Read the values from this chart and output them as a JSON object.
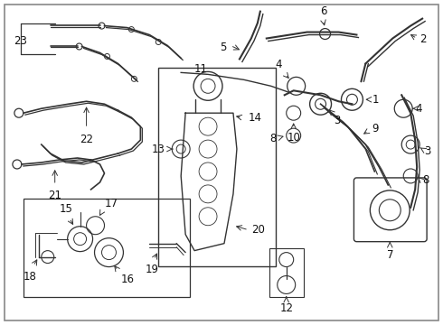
{
  "background_color": "#ffffff",
  "line_color": "#333333",
  "text_color": "#111111",
  "label_fontsize": 8.5,
  "fig_width": 4.9,
  "fig_height": 3.6,
  "dpi": 100
}
